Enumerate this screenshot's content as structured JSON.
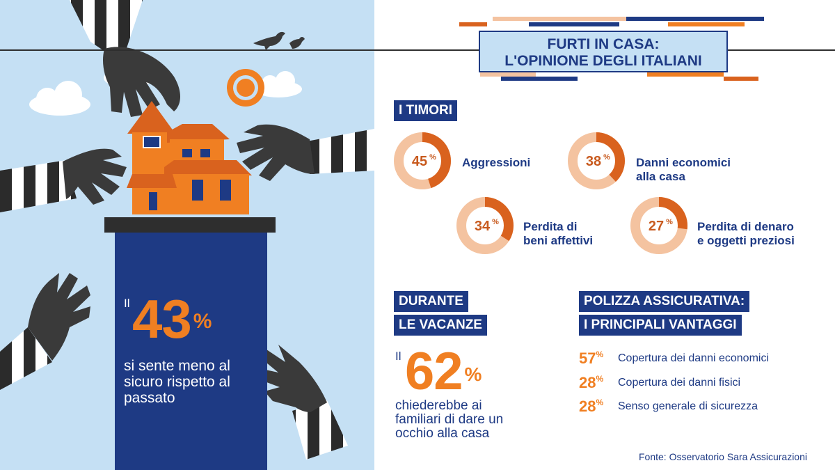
{
  "title": {
    "line1": "FURTI IN CASA:",
    "line2": "L'OPINIONE DEGLI ITALIANI"
  },
  "headline": {
    "prefix": "Il",
    "value": "43",
    "unit": "%",
    "text": "si sente meno al sicuro rispetto al passato"
  },
  "colors": {
    "navy": "#1e3a84",
    "orange": "#f07f22",
    "orange_dark": "#d9621e",
    "ring_light": "#f4c3a0",
    "sky": "#c5e0f4"
  },
  "chart_data": {
    "type": "pie",
    "title": "I TIMORI",
    "items": [
      {
        "label": "Aggressioni",
        "value": 45,
        "unit": "%"
      },
      {
        "label": "Danni economici alla casa",
        "value": 38,
        "unit": "%"
      },
      {
        "label": "Perdita di beni affettivi",
        "value": 34,
        "unit": "%"
      },
      {
        "label": "Perdita di denaro e oggetti preziosi",
        "value": 27,
        "unit": "%"
      }
    ]
  },
  "fears_labels": [
    {
      "l1": "Aggressioni",
      "l2": ""
    },
    {
      "l1": "Danni economici",
      "l2": "alla casa"
    },
    {
      "l1": "Perdita di",
      "l2": "beni affettivi"
    },
    {
      "l1": "Perdita di denaro",
      "l2": "e oggetti preziosi"
    }
  ],
  "vacation": {
    "label_l1": "DURANTE",
    "label_l2": "LE VACANZE",
    "prefix": "Il",
    "value": "62",
    "unit": "%",
    "text": "chiederebbe ai familiari di dare un occhio alla casa"
  },
  "insurance": {
    "label_l1": "POLIZZA ASSICURATIVA:",
    "label_l2": "I PRINCIPALI VANTAGGI",
    "items": [
      {
        "value": "57",
        "unit": "%",
        "text": "Copertura dei danni economici"
      },
      {
        "value": "28",
        "unit": "%",
        "text": "Copertura dei danni fisici"
      },
      {
        "value": "28",
        "unit": "%",
        "text": "Senso generale di sicurezza"
      }
    ]
  },
  "source": "Fonte: Osservatorio Sara Assicurazioni",
  "icons": [
    "striped-arm-hand-icon",
    "house-icon",
    "sun-icon",
    "cloud-icon",
    "bird-icon"
  ]
}
